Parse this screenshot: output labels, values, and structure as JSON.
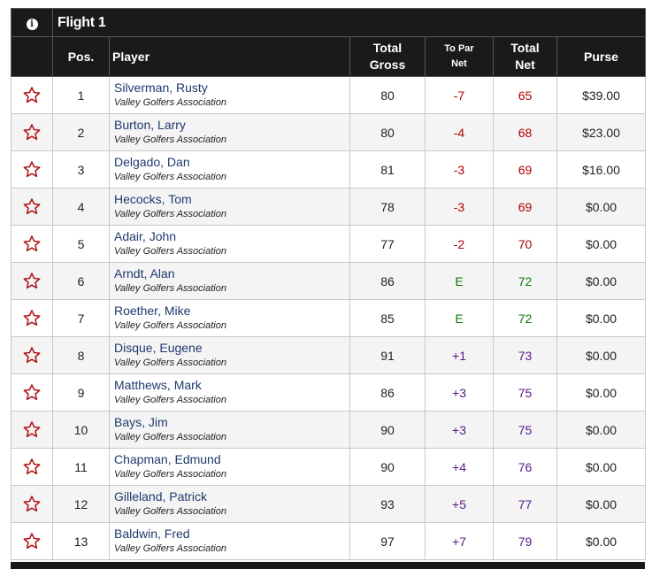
{
  "flight_title": "Flight 1",
  "info_icon": "info-icon",
  "columns": {
    "pos": "Pos.",
    "player": "Player",
    "gross_line1": "Total",
    "gross_line2": "Gross",
    "par_line1": "To Par",
    "par_line2": "Net",
    "net_line1": "Total",
    "net_line2": "Net",
    "purse": "Purse"
  },
  "colors": {
    "under_par": "#b00000",
    "even_par": "#0a7a0a",
    "over_par": "#5a1a8a",
    "star_outline": "#b01818",
    "header_bg": "#1a1a1a"
  },
  "rows": [
    {
      "pos": "1",
      "name": "Silverman, Rusty",
      "club": "Valley Golfers Association",
      "gross": "80",
      "to_par": "-7",
      "net": "65",
      "purse": "$39.00",
      "status": "under"
    },
    {
      "pos": "2",
      "name": "Burton, Larry",
      "club": "Valley Golfers Association",
      "gross": "80",
      "to_par": "-4",
      "net": "68",
      "purse": "$23.00",
      "status": "under"
    },
    {
      "pos": "3",
      "name": "Delgado, Dan",
      "club": "Valley Golfers Association",
      "gross": "81",
      "to_par": "-3",
      "net": "69",
      "purse": "$16.00",
      "status": "under"
    },
    {
      "pos": "4",
      "name": "Hecocks, Tom",
      "club": "Valley Golfers Association",
      "gross": "78",
      "to_par": "-3",
      "net": "69",
      "purse": "$0.00",
      "status": "under"
    },
    {
      "pos": "5",
      "name": "Adair, John",
      "club": "Valley Golfers Association",
      "gross": "77",
      "to_par": "-2",
      "net": "70",
      "purse": "$0.00",
      "status": "under"
    },
    {
      "pos": "6",
      "name": "Arndt, Alan",
      "club": "Valley Golfers Association",
      "gross": "86",
      "to_par": "E",
      "net": "72",
      "purse": "$0.00",
      "status": "even"
    },
    {
      "pos": "7",
      "name": "Roether, Mike",
      "club": "Valley Golfers Association",
      "gross": "85",
      "to_par": "E",
      "net": "72",
      "purse": "$0.00",
      "status": "even"
    },
    {
      "pos": "8",
      "name": "Disque, Eugene",
      "club": "Valley Golfers Association",
      "gross": "91",
      "to_par": "+1",
      "net": "73",
      "purse": "$0.00",
      "status": "over"
    },
    {
      "pos": "9",
      "name": "Matthews, Mark",
      "club": "Valley Golfers Association",
      "gross": "86",
      "to_par": "+3",
      "net": "75",
      "purse": "$0.00",
      "status": "over"
    },
    {
      "pos": "10",
      "name": "Bays, Jim",
      "club": "Valley Golfers Association",
      "gross": "90",
      "to_par": "+3",
      "net": "75",
      "purse": "$0.00",
      "status": "over"
    },
    {
      "pos": "11",
      "name": "Chapman, Edmund",
      "club": "Valley Golfers Association",
      "gross": "90",
      "to_par": "+4",
      "net": "76",
      "purse": "$0.00",
      "status": "over"
    },
    {
      "pos": "12",
      "name": "Gilleland, Patrick",
      "club": "Valley Golfers Association",
      "gross": "93",
      "to_par": "+5",
      "net": "77",
      "purse": "$0.00",
      "status": "over"
    },
    {
      "pos": "13",
      "name": "Baldwin, Fred",
      "club": "Valley Golfers Association",
      "gross": "97",
      "to_par": "+7",
      "net": "79",
      "purse": "$0.00",
      "status": "over"
    }
  ]
}
